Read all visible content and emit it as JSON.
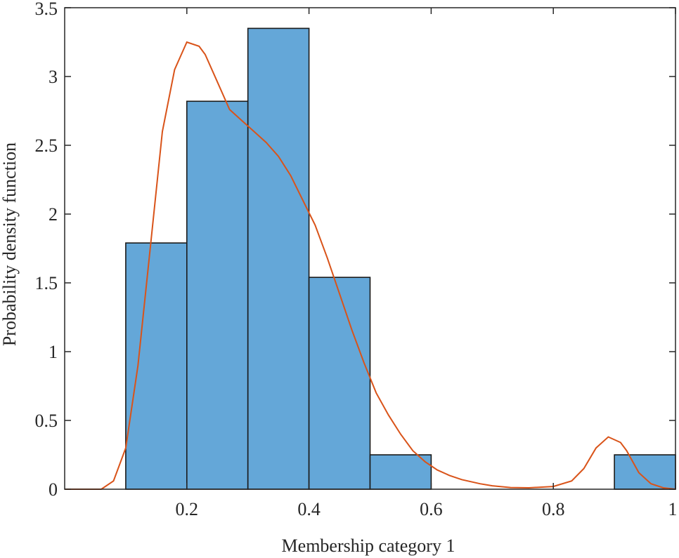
{
  "chart_data": {
    "type": "bar",
    "xlabel": "Membership category 1",
    "ylabel": "Probability density function",
    "xlim": [
      0,
      1
    ],
    "ylim": [
      0,
      3.5
    ],
    "x_ticks": [
      0.2,
      0.4,
      0.6,
      0.8,
      1
    ],
    "x_tick_labels": [
      "0.2",
      "0.4",
      "0.6",
      "0.8",
      "1"
    ],
    "y_ticks": [
      0,
      0.5,
      1,
      1.5,
      2,
      2.5,
      3,
      3.5
    ],
    "y_tick_labels": [
      "0",
      "0.5",
      "1",
      "1.5",
      "2",
      "2.5",
      "3",
      "3.5"
    ],
    "grid": false,
    "histogram": {
      "bin_edges": [
        0.1,
        0.2,
        0.3,
        0.4,
        0.5,
        0.6,
        0.7,
        0.8,
        0.9,
        1.0
      ],
      "values": [
        1.79,
        2.82,
        3.35,
        1.54,
        0.25,
        0,
        0,
        0,
        0.25
      ]
    },
    "density_curve": {
      "x": [
        0.0,
        0.05,
        0.06,
        0.08,
        0.1,
        0.12,
        0.14,
        0.16,
        0.18,
        0.2,
        0.22,
        0.23,
        0.25,
        0.27,
        0.29,
        0.31,
        0.33,
        0.35,
        0.37,
        0.39,
        0.41,
        0.43,
        0.45,
        0.47,
        0.49,
        0.51,
        0.53,
        0.55,
        0.57,
        0.59,
        0.61,
        0.63,
        0.65,
        0.68,
        0.7,
        0.73,
        0.76,
        0.8,
        0.83,
        0.85,
        0.87,
        0.89,
        0.91,
        0.92,
        0.94,
        0.96,
        0.98,
        1.0
      ],
      "y": [
        0,
        0,
        0,
        0.06,
        0.3,
        0.9,
        1.75,
        2.6,
        3.05,
        3.25,
        3.22,
        3.16,
        2.96,
        2.76,
        2.68,
        2.6,
        2.52,
        2.42,
        2.28,
        2.1,
        1.92,
        1.68,
        1.42,
        1.16,
        0.92,
        0.7,
        0.54,
        0.4,
        0.28,
        0.2,
        0.14,
        0.1,
        0.07,
        0.04,
        0.025,
        0.012,
        0.01,
        0.02,
        0.06,
        0.15,
        0.3,
        0.38,
        0.34,
        0.28,
        0.12,
        0.04,
        0.01,
        0
      ],
      "color": "#d95319"
    },
    "bar_fill": "#64a7d8",
    "bar_stroke": "#1a1a1a",
    "axis_color": "#262626"
  }
}
